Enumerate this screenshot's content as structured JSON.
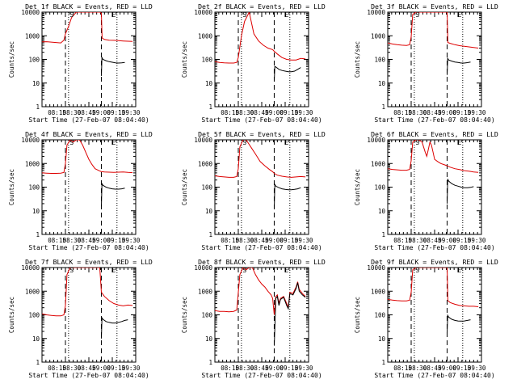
{
  "colors": {
    "events": "#000000",
    "lld": "#dd0000",
    "axes": "#000000"
  },
  "xtick_labels": [
    "08:15",
    "08:30",
    "08:45",
    "09:00",
    "09:15",
    "09:30"
  ],
  "ytick_labels": [
    "1",
    "10",
    "100",
    "1000",
    "10000"
  ],
  "chart_data": [
    {
      "type": "line",
      "title": "Det 1f BLACK = Events, RED = LLD",
      "xlabel": "Start Time (27-Feb-07 08:04:40)",
      "ylabel": "Counts/sec",
      "yscale": "log",
      "ylim": [
        1,
        10000
      ],
      "xlim": [
        0,
        60
      ],
      "grid": false,
      "legend": "none",
      "markers": {
        "S": 19,
        "E": 46
      },
      "dashed_x": [
        15,
        38
      ],
      "dotted_x": [
        17,
        48
      ],
      "series": [
        {
          "name": "LLD",
          "color": "#dd0000",
          "x": [
            0,
            3,
            6,
            9,
            12,
            14,
            15,
            17,
            19,
            22,
            25,
            28,
            31,
            34,
            37,
            38,
            38.5,
            40,
            43,
            46,
            49,
            52,
            55,
            58
          ],
          "y": [
            550,
            560,
            540,
            520,
            500,
            650,
            1200,
            2500,
            6000,
            10000,
            10000,
            10000,
            10000,
            10000,
            10000,
            9000,
            800,
            700,
            650,
            640,
            620,
            600,
            590,
            580
          ]
        },
        {
          "name": "Events",
          "color": "#000000",
          "x": [
            38,
            38.4,
            39,
            41,
            43,
            45,
            47,
            49,
            51,
            53
          ],
          "y": [
            20,
            120,
            100,
            88,
            80,
            76,
            72,
            70,
            72,
            75
          ]
        }
      ]
    },
    {
      "type": "line",
      "title": "Det 2f BLACK = Events, RED = LLD",
      "xlabel": "Start Time (27-Feb-07 08:04:40)",
      "ylabel": "Counts/sec",
      "yscale": "log",
      "ylim": [
        1,
        10000
      ],
      "xlim": [
        0,
        60
      ],
      "grid": false,
      "legend": "none",
      "markers": {
        "S": 19,
        "E": 46
      },
      "dashed_x": [
        15,
        38
      ],
      "dotted_x": [
        17,
        48
      ],
      "series": [
        {
          "name": "LLD",
          "color": "#dd0000",
          "x": [
            0,
            3,
            6,
            9,
            12,
            14,
            15,
            17,
            19,
            22,
            25,
            28,
            31,
            34,
            37,
            38,
            40,
            43,
            46,
            49,
            52,
            55,
            58
          ],
          "y": [
            80,
            75,
            72,
            70,
            70,
            75,
            120,
            1000,
            4000,
            10000,
            1200,
            600,
            400,
            300,
            260,
            220,
            170,
            120,
            100,
            95,
            95,
            110,
            105
          ]
        },
        {
          "name": "Events",
          "color": "#000000",
          "x": [
            38,
            38.4,
            39,
            41,
            43,
            45,
            47,
            49,
            51,
            53,
            55
          ],
          "y": [
            12,
            50,
            48,
            38,
            34,
            32,
            30,
            30,
            32,
            38,
            45
          ]
        }
      ]
    },
    {
      "type": "line",
      "title": "Det 3f BLACK = Events, RED = LLD",
      "xlabel": "Start Time (27-Feb-07 08:04:40)",
      "ylabel": "Counts/sec",
      "yscale": "log",
      "ylim": [
        1,
        10000
      ],
      "xlim": [
        0,
        60
      ],
      "grid": false,
      "legend": "none",
      "markers": {
        "S": 19,
        "E": 46
      },
      "dashed_x": [
        15,
        38
      ],
      "dotted_x": [
        17,
        48
      ],
      "series": [
        {
          "name": "LLD",
          "color": "#dd0000",
          "x": [
            0,
            3,
            6,
            9,
            12,
            14,
            15,
            16,
            18,
            22,
            26,
            30,
            34,
            37,
            38,
            38.5,
            40,
            43,
            46,
            49,
            52,
            55,
            58
          ],
          "y": [
            500,
            450,
            420,
            400,
            390,
            420,
            900,
            8000,
            10000,
            10000,
            10000,
            10000,
            10000,
            10000,
            10000,
            520,
            480,
            420,
            380,
            360,
            340,
            320,
            300
          ]
        },
        {
          "name": "Events",
          "color": "#000000",
          "x": [
            38,
            38.4,
            39,
            41,
            43,
            45,
            47,
            49,
            51,
            53
          ],
          "y": [
            22,
            110,
            95,
            85,
            78,
            74,
            70,
            70,
            73,
            78
          ]
        }
      ]
    },
    {
      "type": "line",
      "title": "Det 4f BLACK = Events, RED = LLD",
      "xlabel": "Start Time (27-Feb-07 08:04:40)",
      "ylabel": "Counts/sec",
      "yscale": "log",
      "ylim": [
        1,
        10000
      ],
      "xlim": [
        0,
        60
      ],
      "grid": false,
      "legend": "none",
      "markers": {
        "S": 19,
        "E": 46
      },
      "dashed_x": [
        15,
        38
      ],
      "dotted_x": [
        17,
        48
      ],
      "series": [
        {
          "name": "LLD",
          "color": "#dd0000",
          "x": [
            0,
            3,
            6,
            9,
            12,
            14,
            15,
            16,
            18,
            20,
            22,
            24,
            26,
            28,
            30,
            32,
            34,
            37,
            38,
            40,
            43,
            46,
            49,
            52,
            55,
            58
          ],
          "y": [
            400,
            390,
            380,
            380,
            390,
            420,
            1000,
            6000,
            10000,
            8000,
            10000,
            10000,
            6000,
            3000,
            1500,
            900,
            600,
            480,
            450,
            440,
            430,
            420,
            430,
            440,
            420,
            410
          ]
        },
        {
          "name": "Events",
          "color": "#000000",
          "x": [
            38,
            38.4,
            39,
            41,
            43,
            45,
            47,
            49,
            51,
            53
          ],
          "y": [
            15,
            140,
            120,
            100,
            90,
            85,
            82,
            82,
            85,
            90
          ]
        }
      ]
    },
    {
      "type": "line",
      "title": "Det 5f BLACK = Events, RED = LLD",
      "xlabel": "Start Time (27-Feb-07 08:04:40)",
      "ylabel": "Counts/sec",
      "yscale": "log",
      "ylim": [
        1,
        10000
      ],
      "xlim": [
        0,
        60
      ],
      "grid": false,
      "legend": "none",
      "markers": {
        "S": 19,
        "E": 46
      },
      "dashed_x": [
        15,
        38
      ],
      "dotted_x": [
        17,
        48
      ],
      "series": [
        {
          "name": "LLD",
          "color": "#dd0000",
          "x": [
            0,
            3,
            6,
            9,
            12,
            14,
            15,
            16,
            18,
            20,
            23,
            26,
            29,
            32,
            35,
            37,
            38,
            40,
            43,
            46,
            49,
            52,
            55,
            58
          ],
          "y": [
            300,
            280,
            270,
            260,
            260,
            280,
            600,
            5000,
            10000,
            10000,
            5000,
            2500,
            1200,
            800,
            550,
            450,
            380,
            320,
            290,
            270,
            260,
            270,
            280,
            270
          ]
        },
        {
          "name": "Events",
          "color": "#000000",
          "x": [
            38,
            38.4,
            39,
            41,
            43,
            45,
            47,
            49,
            51,
            53,
            55
          ],
          "y": [
            12,
            130,
            110,
            95,
            85,
            80,
            78,
            78,
            80,
            85,
            95
          ]
        }
      ]
    },
    {
      "type": "line",
      "title": "Det 6f BLACK = Events, RED = LLD",
      "xlabel": "Start Time (27-Feb-07 08:04:40)",
      "ylabel": "Counts/sec",
      "yscale": "log",
      "ylim": [
        1,
        10000
      ],
      "xlim": [
        0,
        60
      ],
      "grid": false,
      "legend": "none",
      "markers": {
        "S": 19,
        "E": 46
      },
      "dashed_x": [
        15,
        38
      ],
      "dotted_x": [
        17,
        48
      ],
      "series": [
        {
          "name": "LLD",
          "color": "#dd0000",
          "x": [
            0,
            3,
            6,
            9,
            12,
            14,
            15,
            16,
            18,
            20,
            22,
            24,
            25,
            26,
            27,
            28,
            29,
            30,
            32,
            34,
            36,
            38,
            40,
            43,
            46,
            49,
            52,
            55,
            58
          ],
          "y": [
            600,
            560,
            540,
            520,
            520,
            560,
            1300,
            8000,
            10000,
            10000,
            8000,
            3000,
            2000,
            4000,
            8000,
            6000,
            3000,
            1500,
            1200,
            1000,
            900,
            800,
            700,
            600,
            550,
            500,
            470,
            440,
            420
          ]
        },
        {
          "name": "Events",
          "color": "#000000",
          "x": [
            38,
            38.4,
            39,
            41,
            43,
            45,
            47,
            49,
            51,
            53,
            55
          ],
          "y": [
            20,
            220,
            180,
            140,
            120,
            110,
            100,
            95,
            95,
            98,
            105
          ]
        }
      ]
    },
    {
      "type": "line",
      "title": "Det 7f BLACK = Events, RED = LLD",
      "xlabel": "Start Time (27-Feb-07 08:04:40)",
      "ylabel": "Counts/sec",
      "yscale": "log",
      "ylim": [
        1,
        10000
      ],
      "xlim": [
        0,
        60
      ],
      "grid": false,
      "legend": "none",
      "markers": {
        "S": 19,
        "E": 46
      },
      "dashed_x": [
        15,
        38
      ],
      "dotted_x": [
        17,
        48
      ],
      "series": [
        {
          "name": "LLD",
          "color": "#dd0000",
          "x": [
            0,
            3,
            6,
            9,
            12,
            14,
            15,
            16,
            18,
            22,
            26,
            30,
            34,
            37,
            38,
            40,
            43,
            46,
            49,
            52,
            55,
            58
          ],
          "y": [
            110,
            100,
            95,
            90,
            90,
            100,
            250,
            5000,
            10000,
            10000,
            10000,
            10000,
            10000,
            10000,
            900,
            600,
            400,
            300,
            260,
            240,
            260,
            250
          ]
        },
        {
          "name": "Events",
          "color": "#000000",
          "x": [
            38,
            38.4,
            39,
            41,
            43,
            45,
            47,
            49,
            51,
            53,
            55
          ],
          "y": [
            10,
            75,
            65,
            52,
            48,
            45,
            45,
            48,
            52,
            58,
            62
          ]
        }
      ]
    },
    {
      "type": "line",
      "title": "Det 8f BLACK = Events, RED = LLD",
      "xlabel": "Start Time (27-Feb-07 08:04:40)",
      "ylabel": "Counts/sec",
      "yscale": "log",
      "ylim": [
        1,
        10000
      ],
      "xlim": [
        0,
        60
      ],
      "grid": false,
      "legend": "none",
      "markers": {
        "S": 19,
        "E": 46
      },
      "dashed_x": [
        15,
        38
      ],
      "dotted_x": [
        17,
        48
      ],
      "series": [
        {
          "name": "LLD",
          "color": "#dd0000",
          "x": [
            0,
            3,
            6,
            9,
            12,
            14,
            15,
            16,
            18,
            20,
            22,
            24,
            26,
            28,
            30,
            32,
            34,
            36,
            37,
            38,
            39,
            40,
            41,
            42,
            44,
            46,
            47,
            48,
            50,
            52,
            53,
            54,
            56,
            58
          ],
          "y": [
            150,
            140,
            140,
            135,
            140,
            160,
            900,
            5000,
            10000,
            8000,
            10000,
            10000,
            5000,
            3000,
            2000,
            1500,
            1000,
            700,
            500,
            100,
            600,
            700,
            300,
            500,
            600,
            300,
            200,
            900,
            800,
            1500,
            2500,
            1200,
            800,
            600
          ]
        },
        {
          "name": "Events",
          "color": "#000000",
          "x": [
            38,
            39,
            40,
            41,
            42,
            44,
            46,
            47,
            48,
            50,
            52,
            53,
            54,
            56,
            58
          ],
          "y": [
            5,
            500,
            600,
            250,
            450,
            550,
            250,
            180,
            800,
            700,
            1300,
            2300,
            1000,
            700,
            550
          ]
        }
      ]
    },
    {
      "type": "line",
      "title": "Det 9f BLACK = Events, RED = LLD",
      "xlabel": "Start Time (27-Feb-07 08:04:40)",
      "ylabel": "Counts/sec",
      "yscale": "log",
      "ylim": [
        1,
        10000
      ],
      "xlim": [
        0,
        60
      ],
      "grid": false,
      "legend": "none",
      "markers": {
        "S": 19,
        "E": 46
      },
      "dashed_x": [
        15,
        38
      ],
      "dotted_x": [
        17,
        48
      ],
      "series": [
        {
          "name": "LLD",
          "color": "#dd0000",
          "x": [
            0,
            3,
            6,
            9,
            12,
            14,
            15,
            16,
            18,
            22,
            26,
            30,
            34,
            37,
            38,
            38.5,
            40,
            43,
            46,
            49,
            52,
            55,
            58
          ],
          "y": [
            450,
            420,
            400,
            390,
            390,
            420,
            900,
            8000,
            10000,
            10000,
            10000,
            10000,
            10000,
            10000,
            10000,
            400,
            330,
            280,
            250,
            240,
            230,
            230,
            220
          ]
        },
        {
          "name": "Events",
          "color": "#000000",
          "x": [
            38,
            38.4,
            39,
            41,
            43,
            45,
            47,
            49,
            51,
            53
          ],
          "y": [
            18,
            95,
            80,
            65,
            58,
            55,
            54,
            55,
            58,
            62
          ]
        }
      ]
    }
  ]
}
